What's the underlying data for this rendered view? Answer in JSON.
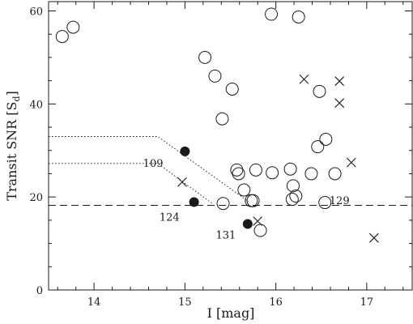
{
  "chart_data": {
    "type": "scatter",
    "title": "",
    "xlabel": "I [mag]",
    "ylabel": "Transit SNR [S",
    "ylabel_sub": "d",
    "ylabel_close": "]",
    "xlim": [
      13.5,
      17.5
    ],
    "ylim": [
      0,
      62
    ],
    "x_ticks": [
      14,
      15,
      16,
      17
    ],
    "x_tick_labels": [
      "14",
      "15",
      "16",
      "17"
    ],
    "y_ticks": [
      0,
      20,
      40,
      60
    ],
    "y_tick_labels": [
      "0",
      "20",
      "40",
      "60"
    ],
    "grid": false,
    "legend": "none",
    "colors": {
      "ink": "#1a1a1a",
      "background": "#ffffff"
    },
    "series": [
      {
        "marker": "open-circle",
        "points": [
          [
            13.65,
            54.5
          ],
          [
            13.77,
            56.5
          ],
          [
            15.22,
            50.0
          ],
          [
            15.33,
            46.0
          ],
          [
            15.52,
            43.2
          ],
          [
            15.41,
            36.8
          ],
          [
            15.57,
            25.8
          ],
          [
            15.59,
            25.0
          ],
          [
            15.65,
            21.5
          ],
          [
            15.42,
            18.6
          ],
          [
            15.73,
            19.2
          ],
          [
            15.75,
            19.2
          ],
          [
            15.78,
            25.8
          ],
          [
            15.96,
            25.2
          ],
          [
            15.83,
            12.8
          ],
          [
            15.95,
            59.3
          ],
          [
            16.25,
            58.7
          ],
          [
            16.16,
            26.0
          ],
          [
            16.19,
            22.4
          ],
          [
            16.18,
            19.5
          ],
          [
            16.22,
            20.2
          ],
          [
            16.39,
            25.0
          ],
          [
            16.48,
            42.7
          ],
          [
            16.46,
            30.8
          ],
          [
            16.55,
            32.4
          ],
          [
            16.54,
            18.8
          ],
          [
            16.65,
            25.0
          ]
        ]
      },
      {
        "marker": "filled-circle",
        "points": [
          [
            15.0,
            29.8
          ],
          [
            15.1,
            18.9
          ],
          [
            15.69,
            14.2
          ]
        ]
      },
      {
        "marker": "cross",
        "points": [
          [
            14.97,
            23.2
          ],
          [
            15.8,
            14.8
          ],
          [
            16.31,
            45.3
          ],
          [
            16.7,
            44.9
          ],
          [
            16.7,
            40.2
          ],
          [
            16.83,
            27.4
          ],
          [
            17.08,
            11.2
          ]
        ]
      }
    ],
    "lines": [
      {
        "style": "dashed",
        "points": [
          [
            13.5,
            18.2
          ],
          [
            17.5,
            18.2
          ]
        ]
      },
      {
        "style": "dotted",
        "points": [
          [
            13.5,
            33.0
          ],
          [
            14.7,
            33.0
          ],
          [
            15.7,
            19.0
          ]
        ]
      },
      {
        "style": "dotted",
        "points": [
          [
            13.5,
            27.2
          ],
          [
            14.7,
            27.2
          ],
          [
            15.3,
            18.6
          ]
        ]
      }
    ],
    "annotations": [
      {
        "text": "109",
        "x": 14.65,
        "y": 27.3
      },
      {
        "text": "124",
        "x": 14.83,
        "y": 15.8
      },
      {
        "text": "131",
        "x": 15.45,
        "y": 11.9
      },
      {
        "text": "129",
        "x": 16.7,
        "y": 19.3
      }
    ]
  }
}
